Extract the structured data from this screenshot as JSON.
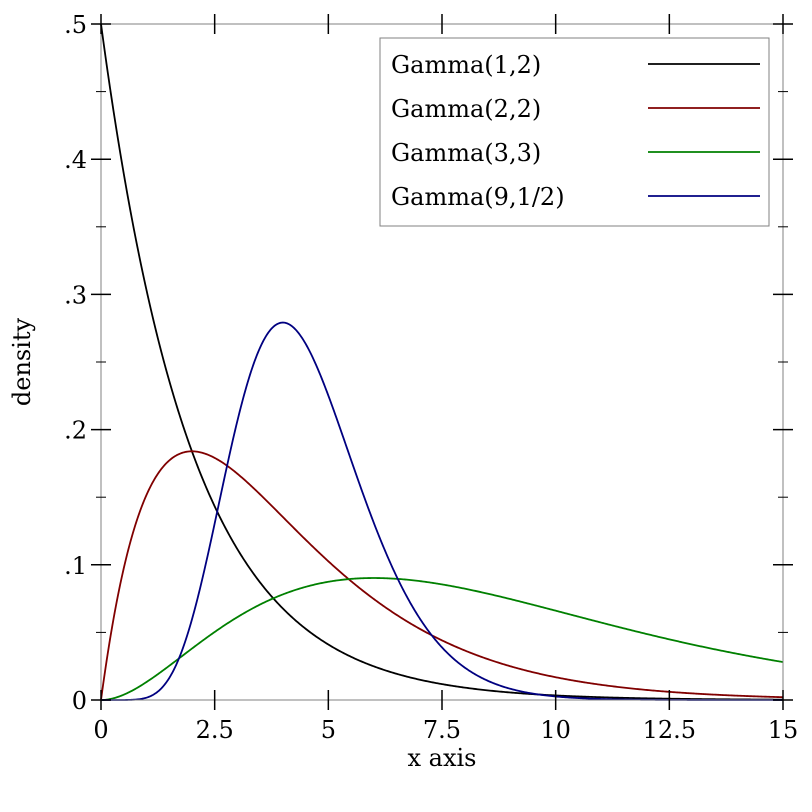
{
  "chart_data": {
    "type": "line",
    "title": "",
    "xlabel": "x axis",
    "ylabel": "density",
    "xlim": [
      0,
      15
    ],
    "ylim": [
      0,
      0.5
    ],
    "x_ticks": [
      0,
      2.5,
      5,
      7.5,
      10,
      12.5,
      15
    ],
    "x_tick_labels": [
      "0",
      "2.5",
      "5",
      "7.5",
      "10",
      "12.5",
      "15"
    ],
    "y_ticks": [
      0,
      0.1,
      0.2,
      0.3,
      0.4,
      0.5
    ],
    "y_tick_labels": [
      "0",
      ".1",
      ".2",
      ".3",
      ".4",
      ".5"
    ],
    "y_minor_ticks": [
      0.05,
      0.15,
      0.25,
      0.35,
      0.45
    ],
    "grid": false,
    "legend_position": "top-right",
    "series": [
      {
        "name": "Gamma(1,2)",
        "shape": 1,
        "scale": 2,
        "color": "#000000"
      },
      {
        "name": "Gamma(2,2)",
        "shape": 2,
        "scale": 2,
        "color": "#800000"
      },
      {
        "name": "Gamma(3,3)",
        "shape": 3,
        "scale": 3,
        "color": "#008000"
      },
      {
        "name": "Gamma(9,1/2)",
        "shape": 9,
        "scale": 0.5,
        "color": "#000080"
      }
    ]
  }
}
